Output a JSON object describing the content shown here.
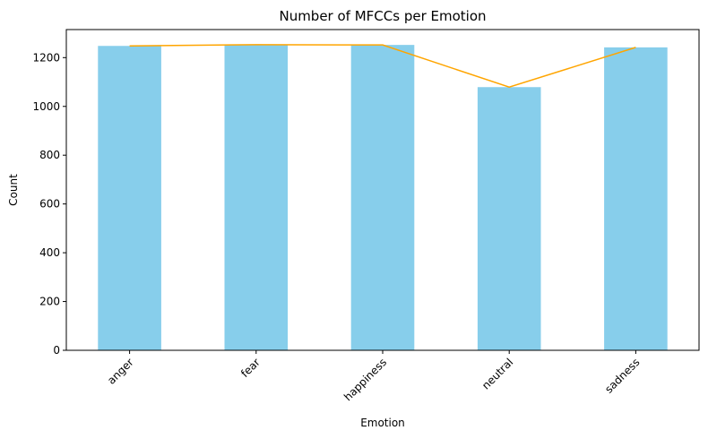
{
  "chart_data": {
    "type": "bar",
    "title": "Number of MFCCs per Emotion",
    "xlabel": "Emotion",
    "ylabel": "Count",
    "categories": [
      "anger",
      "fear",
      "happiness",
      "neutral",
      "sadness"
    ],
    "values": [
      1248,
      1253,
      1252,
      1079,
      1242
    ],
    "line_values": [
      1248,
      1253,
      1252,
      1079,
      1242
    ],
    "ylim": [
      0,
      1315
    ],
    "yticks": [
      0,
      200,
      400,
      600,
      800,
      1000,
      1200
    ],
    "grid": false,
    "bar_color": "#87CEEB",
    "line_color": "#FFA500"
  }
}
